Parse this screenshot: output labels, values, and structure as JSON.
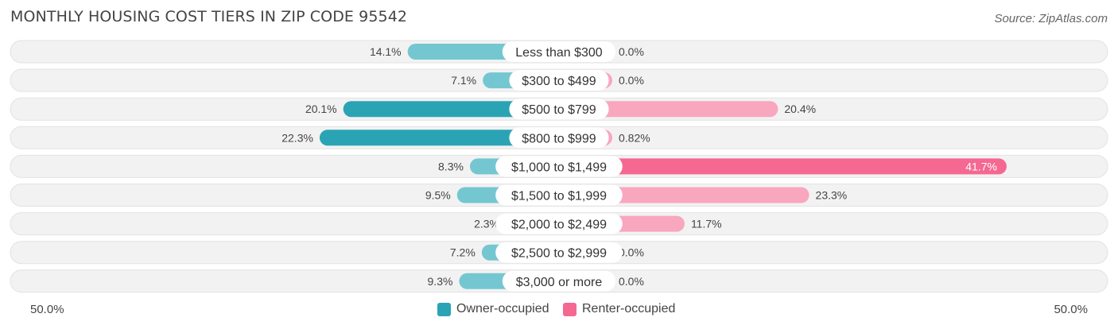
{
  "header": {
    "title": "MONTHLY HOUSING COST TIERS IN ZIP CODE 95542",
    "source": "Source: ZipAtlas.com"
  },
  "axis": {
    "left_label": "50.0%",
    "right_label": "50.0%"
  },
  "legend": {
    "owner_label": "Owner-occupied",
    "renter_label": "Renter-occupied"
  },
  "colors": {
    "owner_dark": "#2aa4b4",
    "owner_light": "#74c7d1",
    "renter_dark": "#f46892",
    "renter_light": "#f9a6bf",
    "row_bg": "#f2f2f2"
  },
  "chart_data": {
    "type": "bar",
    "orientation": "horizontal-diverging",
    "xlim": [
      -50,
      50
    ],
    "categories": [
      "Less than $300",
      "$300 to $499",
      "$500 to $799",
      "$800 to $999",
      "$1,000 to $1,499",
      "$1,500 to $1,999",
      "$2,000 to $2,499",
      "$2,500 to $2,999",
      "$3,000 or more"
    ],
    "series": [
      {
        "name": "Owner-occupied",
        "values": [
          14.1,
          7.1,
          20.1,
          22.3,
          8.3,
          9.5,
          2.3,
          7.2,
          9.3
        ],
        "labels": [
          "14.1%",
          "7.1%",
          "20.1%",
          "22.3%",
          "8.3%",
          "9.5%",
          "2.3%",
          "7.2%",
          "9.3%"
        ]
      },
      {
        "name": "Renter-occupied",
        "values": [
          0.0,
          0.0,
          20.4,
          0.82,
          41.7,
          23.3,
          11.7,
          0.0,
          0.0
        ],
        "labels": [
          "0.0%",
          "0.0%",
          "20.4%",
          "0.82%",
          "41.7%",
          "23.3%",
          "11.7%",
          "0.0%",
          "0.0%"
        ]
      }
    ]
  }
}
